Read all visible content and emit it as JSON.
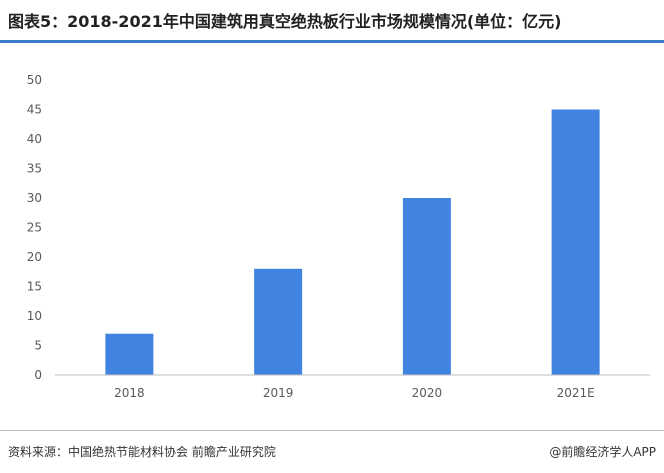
{
  "title": "图表5：2018-2021年中国建筑用真空绝热板行业市场规模情况(单位：亿元)",
  "chart_data": {
    "type": "bar",
    "categories": [
      "2018",
      "2019",
      "2020",
      "2021E"
    ],
    "values": [
      7,
      18,
      30,
      45
    ],
    "ylim": [
      0,
      50
    ],
    "yticks": [
      0,
      5,
      10,
      15,
      20,
      25,
      30,
      35,
      40,
      45,
      50
    ],
    "grid": false,
    "legend": "none",
    "bar_color": "#4183e0"
  },
  "footer": {
    "source": "资料来源：中国绝热节能材料协会 前瞻产业研究院",
    "credit": "@前瞻经济学人APP"
  }
}
